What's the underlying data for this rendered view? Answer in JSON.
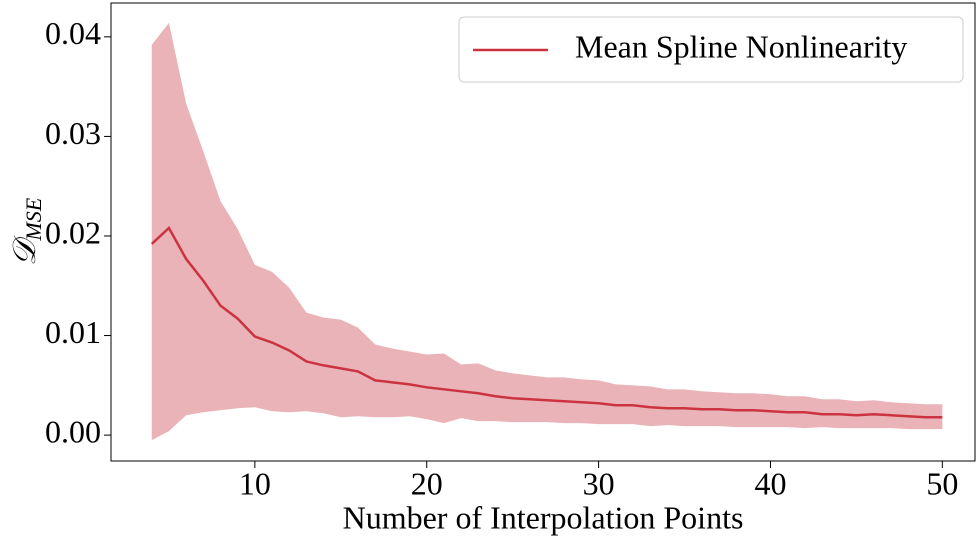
{
  "chart_data": {
    "type": "line",
    "xlabel": "Number of Interpolation Points",
    "ylabel": {
      "symbol": "𝒟",
      "subscript": "MSE"
    },
    "x": [
      4,
      5,
      6,
      7,
      8,
      9,
      10,
      11,
      12,
      13,
      14,
      15,
      16,
      17,
      18,
      19,
      20,
      21,
      22,
      23,
      24,
      25,
      26,
      27,
      28,
      29,
      30,
      31,
      32,
      33,
      34,
      35,
      36,
      37,
      38,
      39,
      40,
      41,
      42,
      43,
      44,
      45,
      46,
      47,
      48,
      49,
      50
    ],
    "series": [
      {
        "name": "Mean Spline Nonlinearity",
        "color": "#cc3340",
        "values": [
          0.0192,
          0.0208,
          0.0177,
          0.0155,
          0.013,
          0.0117,
          0.0099,
          0.0093,
          0.0085,
          0.0074,
          0.007,
          0.0067,
          0.0064,
          0.0055,
          0.0053,
          0.0051,
          0.0048,
          0.0046,
          0.0044,
          0.0042,
          0.0039,
          0.0037,
          0.0036,
          0.0035,
          0.0034,
          0.0033,
          0.0032,
          0.003,
          0.003,
          0.0028,
          0.0027,
          0.0027,
          0.0026,
          0.0026,
          0.0025,
          0.0025,
          0.0024,
          0.0023,
          0.0023,
          0.0021,
          0.0021,
          0.002,
          0.0021,
          0.002,
          0.0019,
          0.0018,
          0.0018
        ]
      }
    ],
    "band": {
      "color": "#eab3b8",
      "upper": [
        0.0392,
        0.0414,
        0.0333,
        0.0285,
        0.0235,
        0.0207,
        0.0171,
        0.0164,
        0.0148,
        0.0123,
        0.0118,
        0.0116,
        0.0108,
        0.0091,
        0.0087,
        0.0084,
        0.0081,
        0.0082,
        0.0071,
        0.0072,
        0.0065,
        0.0062,
        0.006,
        0.0058,
        0.0058,
        0.0056,
        0.0055,
        0.0051,
        0.005,
        0.0049,
        0.0046,
        0.0046,
        0.0044,
        0.0043,
        0.0042,
        0.0042,
        0.0041,
        0.0039,
        0.0039,
        0.0036,
        0.0036,
        0.0034,
        0.0035,
        0.0033,
        0.0032,
        0.0031,
        0.0031
      ],
      "lower": [
        -0.0005,
        0.0004,
        0.002,
        0.0023,
        0.0025,
        0.0027,
        0.0028,
        0.0024,
        0.0023,
        0.0024,
        0.0022,
        0.0018,
        0.0019,
        0.0018,
        0.0018,
        0.0019,
        0.0016,
        0.0012,
        0.0017,
        0.0014,
        0.0014,
        0.0013,
        0.0013,
        0.0013,
        0.0012,
        0.0012,
        0.0011,
        0.0011,
        0.0011,
        0.0009,
        0.001,
        0.0009,
        0.0009,
        0.0009,
        0.0008,
        0.0008,
        0.0008,
        0.0008,
        0.0007,
        0.0008,
        0.0007,
        0.0007,
        0.0007,
        0.0007,
        0.0006,
        0.0006,
        0.0006
      ]
    },
    "xlim": [
      1.63,
      51.9
    ],
    "ylim": [
      -0.0026,
      0.0434
    ],
    "xticks": [
      10,
      20,
      30,
      40,
      50
    ],
    "yticks": [
      {
        "value": 0,
        "label": "0.00"
      },
      0.01,
      0.02,
      0.03,
      0.04
    ],
    "grid": false,
    "legend": "upper right"
  }
}
